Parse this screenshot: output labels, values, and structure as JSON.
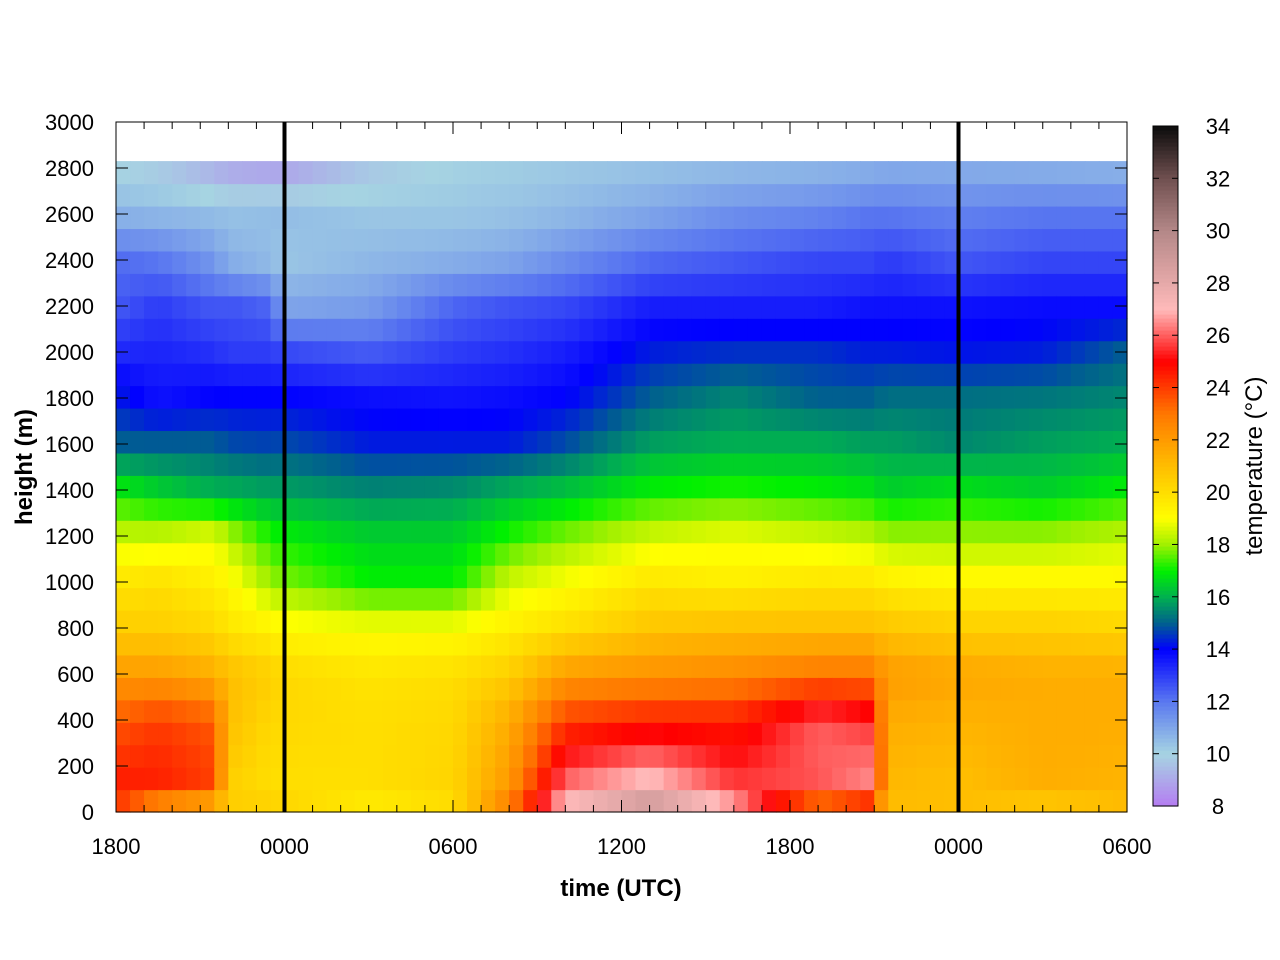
{
  "chart_data": {
    "type": "heatmap",
    "title": "",
    "xlabel": "time (UTC)",
    "ylabel": "height (m)",
    "colorbar_label": "temperature (°C)",
    "x_hours": [
      -6,
      0,
      6,
      12,
      18,
      24,
      30
    ],
    "x_tick_labels": [
      "1800",
      "0000",
      "0600",
      "1200",
      "1800",
      "0000",
      "0600"
    ],
    "xlim_hours": [
      -6,
      30
    ],
    "y_ticks": [
      0,
      200,
      400,
      600,
      800,
      1000,
      1200,
      1400,
      1600,
      1800,
      2000,
      2200,
      2400,
      2600,
      2800,
      3000
    ],
    "ylim": [
      0,
      3000
    ],
    "data_top_height": 2830,
    "colorbar_ticks": [
      8,
      10,
      12,
      14,
      16,
      18,
      20,
      22,
      24,
      26,
      28,
      30,
      32,
      34
    ],
    "colorbar_range": [
      8,
      34
    ],
    "colormap": [
      {
        "t": 8,
        "color": "#b57cf2"
      },
      {
        "t": 10,
        "color": "#a6d4e2"
      },
      {
        "t": 12,
        "color": "#5a78f0"
      },
      {
        "t": 14,
        "color": "#0000ff"
      },
      {
        "t": 15,
        "color": "#00608e"
      },
      {
        "t": 16,
        "color": "#00b050"
      },
      {
        "t": 17,
        "color": "#00f000"
      },
      {
        "t": 18,
        "color": "#a0f000"
      },
      {
        "t": 19,
        "color": "#ffff00"
      },
      {
        "t": 21,
        "color": "#ffbe00"
      },
      {
        "t": 23,
        "color": "#ff7800"
      },
      {
        "t": 25,
        "color": "#ff0000"
      },
      {
        "t": 27,
        "color": "#ffbaba"
      },
      {
        "t": 30,
        "color": "#b48888"
      },
      {
        "t": 32,
        "color": "#705050"
      },
      {
        "t": 34,
        "color": "#0c0c0c"
      }
    ],
    "midnight_markers_hours": [
      0,
      24
    ],
    "profiles": [
      {
        "x": -6,
        "levels": [
          [
            0,
            24
          ],
          [
            150,
            24.5
          ],
          [
            400,
            23.5
          ],
          [
            600,
            22
          ],
          [
            800,
            20.5
          ],
          [
            1000,
            19.8
          ],
          [
            1200,
            18.4
          ],
          [
            1400,
            17
          ],
          [
            1600,
            15
          ],
          [
            1800,
            14.3
          ],
          [
            2000,
            13.3
          ],
          [
            2200,
            12.5
          ],
          [
            2400,
            12.2
          ],
          [
            2600,
            10.7
          ],
          [
            2830,
            9.8
          ]
        ]
      },
      {
        "x": -4.5,
        "levels": [
          [
            0,
            22
          ],
          [
            150,
            24.5
          ],
          [
            400,
            24
          ],
          [
            600,
            22
          ],
          [
            800,
            20.5
          ],
          [
            1000,
            20
          ],
          [
            1200,
            18.4
          ],
          [
            1400,
            16.5
          ],
          [
            1600,
            15
          ],
          [
            1800,
            13.7
          ],
          [
            2000,
            13.4
          ],
          [
            2200,
            13
          ],
          [
            2400,
            12
          ],
          [
            2600,
            10.6
          ],
          [
            2830,
            9.6
          ]
        ]
      },
      {
        "x": -2.5,
        "levels": [
          [
            0,
            21
          ],
          [
            150,
            24
          ],
          [
            400,
            23.5
          ],
          [
            600,
            21.5
          ],
          [
            800,
            20.2
          ],
          [
            1000,
            19.5
          ],
          [
            1200,
            18.8
          ],
          [
            1400,
            16
          ],
          [
            1600,
            15
          ],
          [
            1800,
            14
          ],
          [
            2000,
            13.2
          ],
          [
            2200,
            12.5
          ],
          [
            2400,
            11.3
          ],
          [
            2600,
            10.5
          ],
          [
            2830,
            9
          ]
        ]
      },
      {
        "x": -2,
        "levels": [
          [
            0,
            20.5
          ],
          [
            150,
            20.5
          ],
          [
            400,
            21
          ],
          [
            600,
            21
          ],
          [
            800,
            19.8
          ],
          [
            1000,
            19.2
          ],
          [
            1200,
            18.2
          ],
          [
            1400,
            16
          ],
          [
            1600,
            14.8
          ],
          [
            1800,
            14
          ],
          [
            2000,
            13
          ],
          [
            2200,
            12.6
          ],
          [
            2400,
            10.8
          ],
          [
            2600,
            10.4
          ],
          [
            2830,
            8.8
          ]
        ]
      },
      {
        "x": -0.5,
        "levels": [
          [
            0,
            20.5
          ],
          [
            150,
            20
          ],
          [
            400,
            20.2
          ],
          [
            600,
            20.5
          ],
          [
            800,
            19.4
          ],
          [
            1000,
            18
          ],
          [
            1200,
            17.2
          ],
          [
            1400,
            15.8
          ],
          [
            1600,
            14.7
          ],
          [
            1800,
            14
          ],
          [
            2000,
            13
          ],
          [
            2200,
            12.3
          ],
          [
            2400,
            10.5
          ],
          [
            2600,
            10.5
          ],
          [
            2830,
            8.6
          ]
        ]
      },
      {
        "x": 0,
        "levels": [
          [
            0,
            20.3
          ],
          [
            150,
            20
          ],
          [
            400,
            20.2
          ],
          [
            600,
            20.2
          ],
          [
            800,
            19.2
          ],
          [
            1000,
            17.8
          ],
          [
            1200,
            17
          ],
          [
            1400,
            15.8
          ],
          [
            1600,
            14.8
          ],
          [
            1800,
            14
          ],
          [
            2000,
            12.8
          ],
          [
            2200,
            11
          ],
          [
            2400,
            10.3
          ],
          [
            2600,
            10.5
          ],
          [
            2830,
            8.6
          ]
        ]
      },
      {
        "x": 3,
        "levels": [
          [
            0,
            19.5
          ],
          [
            150,
            20
          ],
          [
            400,
            20
          ],
          [
            600,
            19.8
          ],
          [
            800,
            19
          ],
          [
            1000,
            17
          ],
          [
            1200,
            16.5
          ],
          [
            1400,
            15.5
          ],
          [
            1600,
            14.3
          ],
          [
            1800,
            13.8
          ],
          [
            2000,
            12.5
          ],
          [
            2200,
            11.2
          ],
          [
            2400,
            10.6
          ],
          [
            2600,
            10.3
          ],
          [
            2830,
            9.6
          ]
        ]
      },
      {
        "x": 6,
        "levels": [
          [
            0,
            20
          ],
          [
            150,
            20.3
          ],
          [
            400,
            20.2
          ],
          [
            600,
            20
          ],
          [
            800,
            19
          ],
          [
            1000,
            17
          ],
          [
            1200,
            16.5
          ],
          [
            1400,
            15.6
          ],
          [
            1600,
            14.3
          ],
          [
            1800,
            13.7
          ],
          [
            2000,
            13
          ],
          [
            2200,
            12.3
          ],
          [
            2400,
            10.8
          ],
          [
            2600,
            10.3
          ],
          [
            2830,
            10
          ]
        ]
      },
      {
        "x": 8,
        "levels": [
          [
            0,
            23
          ],
          [
            150,
            22
          ],
          [
            400,
            21.5
          ],
          [
            600,
            20.5
          ],
          [
            800,
            19.5
          ],
          [
            1000,
            18.5
          ],
          [
            1200,
            17.2
          ],
          [
            1400,
            16
          ],
          [
            1600,
            14.3
          ],
          [
            1800,
            13.8
          ],
          [
            2000,
            13.2
          ],
          [
            2200,
            12.6
          ],
          [
            2400,
            11
          ],
          [
            2600,
            10.4
          ],
          [
            2830,
            10.1
          ]
        ]
      },
      {
        "x": 10,
        "levels": [
          [
            0,
            27.5
          ],
          [
            150,
            26
          ],
          [
            400,
            24
          ],
          [
            600,
            22
          ],
          [
            800,
            20
          ],
          [
            1000,
            19
          ],
          [
            1200,
            17.8
          ],
          [
            1400,
            16.3
          ],
          [
            1600,
            14.8
          ],
          [
            1800,
            14
          ],
          [
            2000,
            13.5
          ],
          [
            2200,
            12.8
          ],
          [
            2400,
            11.5
          ],
          [
            2600,
            10.6
          ],
          [
            2830,
            10.2
          ]
        ]
      },
      {
        "x": 13,
        "levels": [
          [
            0,
            29.5
          ],
          [
            150,
            27
          ],
          [
            400,
            24.5
          ],
          [
            600,
            22.3
          ],
          [
            800,
            20.8
          ],
          [
            1000,
            19.8
          ],
          [
            1200,
            18.5
          ],
          [
            1400,
            17
          ],
          [
            1600,
            15.8
          ],
          [
            1800,
            15
          ],
          [
            2000,
            14.3
          ],
          [
            2200,
            13.5
          ],
          [
            2400,
            12.2
          ],
          [
            2600,
            11
          ],
          [
            2830,
            10.3
          ]
        ]
      },
      {
        "x": 16,
        "levels": [
          [
            0,
            27
          ],
          [
            150,
            25.5
          ],
          [
            400,
            24.5
          ],
          [
            600,
            22.5
          ],
          [
            800,
            21
          ],
          [
            1000,
            19.5
          ],
          [
            1200,
            18.8
          ],
          [
            1400,
            17.2
          ],
          [
            1600,
            16
          ],
          [
            1800,
            15.5
          ],
          [
            2000,
            14.5
          ],
          [
            2200,
            13.5
          ],
          [
            2400,
            12.5
          ],
          [
            2600,
            11.5
          ],
          [
            2830,
            10.4
          ]
        ]
      },
      {
        "x": 19,
        "levels": [
          [
            0,
            22
          ],
          [
            150,
            26
          ],
          [
            400,
            26
          ],
          [
            600,
            23
          ],
          [
            800,
            21
          ],
          [
            1000,
            19.8
          ],
          [
            1200,
            18.5
          ],
          [
            1400,
            17
          ],
          [
            1600,
            16
          ],
          [
            1800,
            15
          ],
          [
            2000,
            14.5
          ],
          [
            2200,
            13.5
          ],
          [
            2400,
            12.8
          ],
          [
            2600,
            11.7
          ],
          [
            2830,
            10.5
          ]
        ]
      },
      {
        "x": 20.8,
        "levels": [
          [
            0,
            23
          ],
          [
            150,
            26.5
          ],
          [
            400,
            25.5
          ],
          [
            600,
            23
          ],
          [
            800,
            21
          ],
          [
            1000,
            19.8
          ],
          [
            1200,
            18.3
          ],
          [
            1400,
            16.8
          ],
          [
            1600,
            15.8
          ],
          [
            1800,
            15
          ],
          [
            2000,
            14.3
          ],
          [
            2200,
            13.7
          ],
          [
            2400,
            12.8
          ],
          [
            2600,
            12
          ],
          [
            2830,
            10.6
          ]
        ]
      },
      {
        "x": 21.5,
        "levels": [
          [
            0,
            21
          ],
          [
            150,
            21.2
          ],
          [
            400,
            21.5
          ],
          [
            600,
            22
          ],
          [
            800,
            20.8
          ],
          [
            1000,
            19.5
          ],
          [
            1200,
            18
          ],
          [
            1400,
            16.5
          ],
          [
            1600,
            15.8
          ],
          [
            1800,
            15.2
          ],
          [
            2000,
            14.3
          ],
          [
            2200,
            13.7
          ],
          [
            2400,
            13
          ],
          [
            2600,
            12
          ],
          [
            2830,
            10.7
          ]
        ]
      },
      {
        "x": 24,
        "levels": [
          [
            0,
            21
          ],
          [
            150,
            21
          ],
          [
            400,
            21.3
          ],
          [
            600,
            21.7
          ],
          [
            800,
            20.5
          ],
          [
            1000,
            19.3
          ],
          [
            1200,
            18
          ],
          [
            1400,
            16.8
          ],
          [
            1600,
            15.5
          ],
          [
            1800,
            15.2
          ],
          [
            2000,
            14.2
          ],
          [
            2200,
            13.7
          ],
          [
            2400,
            12.5
          ],
          [
            2600,
            11.8
          ],
          [
            2830,
            10.7
          ]
        ]
      },
      {
        "x": 27,
        "levels": [
          [
            0,
            20.5
          ],
          [
            150,
            21.5
          ],
          [
            400,
            21.5
          ],
          [
            600,
            21.5
          ],
          [
            800,
            20.5
          ],
          [
            1000,
            19.3
          ],
          [
            1200,
            18
          ],
          [
            1400,
            16.5
          ],
          [
            1600,
            15.8
          ],
          [
            1800,
            15.3
          ],
          [
            2000,
            14.3
          ],
          [
            2200,
            13.8
          ],
          [
            2400,
            12.8
          ],
          [
            2600,
            12
          ],
          [
            2830,
            10.6
          ]
        ]
      },
      {
        "x": 30,
        "levels": [
          [
            0,
            21
          ],
          [
            150,
            21.3
          ],
          [
            400,
            21.5
          ],
          [
            600,
            21.5
          ],
          [
            800,
            20.3
          ],
          [
            1000,
            19.3
          ],
          [
            1200,
            18.3
          ],
          [
            1400,
            17
          ],
          [
            1600,
            16
          ],
          [
            1800,
            15.5
          ],
          [
            2000,
            15
          ],
          [
            2200,
            13.8
          ],
          [
            2400,
            12.8
          ],
          [
            2600,
            12
          ],
          [
            2830,
            10.5
          ]
        ]
      }
    ]
  }
}
